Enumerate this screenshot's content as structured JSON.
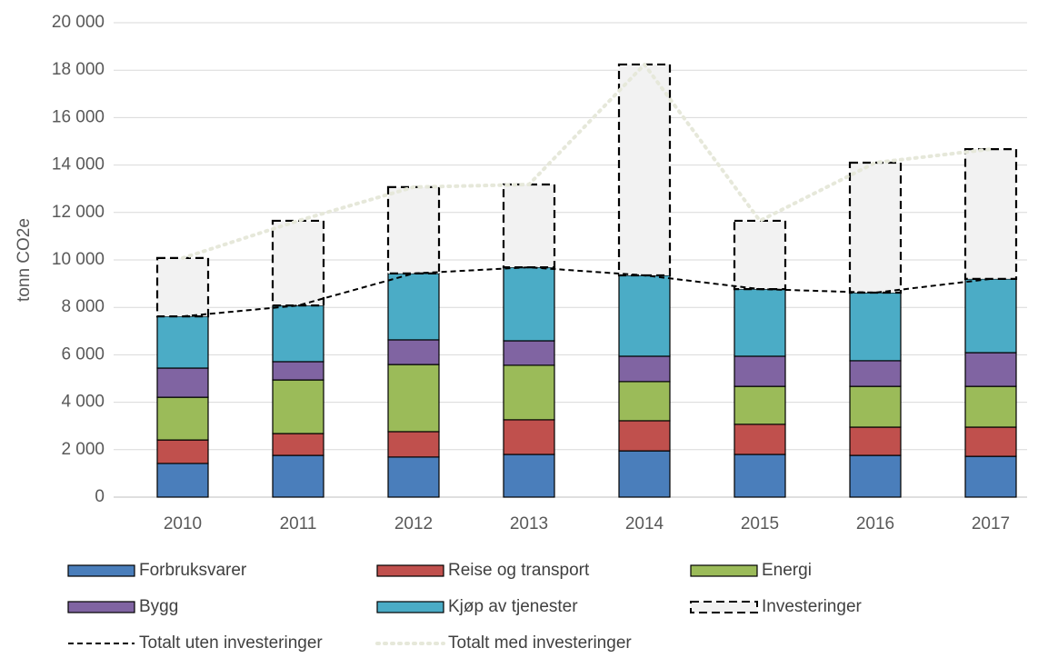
{
  "chart_data": {
    "type": "bar",
    "stacked": true,
    "y_label": "tonn CO2e",
    "categories": [
      "2010",
      "2011",
      "2012",
      "2013",
      "2014",
      "2015",
      "2016",
      "2017"
    ],
    "series": [
      {
        "name": "Forbruksvarer",
        "color": "#4a7ebb",
        "values": [
          1420,
          1760,
          1690,
          1800,
          1950,
          1800,
          1760,
          1720
        ]
      },
      {
        "name": "Reise og transport",
        "color": "#c0504d",
        "values": [
          990,
          920,
          1070,
          1460,
          1270,
          1270,
          1190,
          1230
        ]
      },
      {
        "name": "Energi",
        "color": "#9bbb59",
        "values": [
          1800,
          2260,
          2830,
          2300,
          1650,
          1600,
          1720,
          1720
        ]
      },
      {
        "name": "Bygg",
        "color": "#8064a2",
        "values": [
          1230,
          770,
          1040,
          1030,
          1070,
          1270,
          1080,
          1420
        ]
      },
      {
        "name": "Kjøp av tjenester",
        "color": "#4bacc6",
        "values": [
          2180,
          2370,
          2800,
          3100,
          3410,
          2830,
          2870,
          3110
        ]
      },
      {
        "name": "Investeringer",
        "color": "#f2f2f2",
        "border": "dashed",
        "values": [
          2460,
          3570,
          3640,
          3490,
          8890,
          2880,
          5480,
          5470
        ]
      },
      {
        "name": "Totalt uten investeringer",
        "type": "line",
        "color": "#000000",
        "line_style": "dashed",
        "values": [
          7620,
          8080,
          9430,
          9690,
          9350,
          8770,
          8620,
          9200
        ]
      },
      {
        "name": "Totalt med investeringer",
        "type": "line",
        "color": "#e6e8da",
        "line_style": "dotted",
        "values": [
          10080,
          11650,
          13070,
          13180,
          18240,
          11650,
          14100,
          14670
        ]
      }
    ],
    "ylim": [
      0,
      20000
    ],
    "yticks": [
      0,
      {
        "value": 2000,
        "label": "2 000"
      },
      {
        "value": 4000,
        "label": "4 000"
      },
      {
        "value": 6000,
        "label": "6 000"
      },
      {
        "value": 8000,
        "label": "8 000"
      },
      {
        "value": 10000,
        "label": "10 000"
      },
      {
        "value": 12000,
        "label": "12 000"
      },
      {
        "value": 14000,
        "label": "14 000"
      },
      {
        "value": 16000,
        "label": "16 000"
      },
      {
        "value": 18000,
        "label": "18 000"
      },
      {
        "value": 20000,
        "label": "20 000"
      }
    ],
    "grid": true,
    "legend": "bottom"
  }
}
